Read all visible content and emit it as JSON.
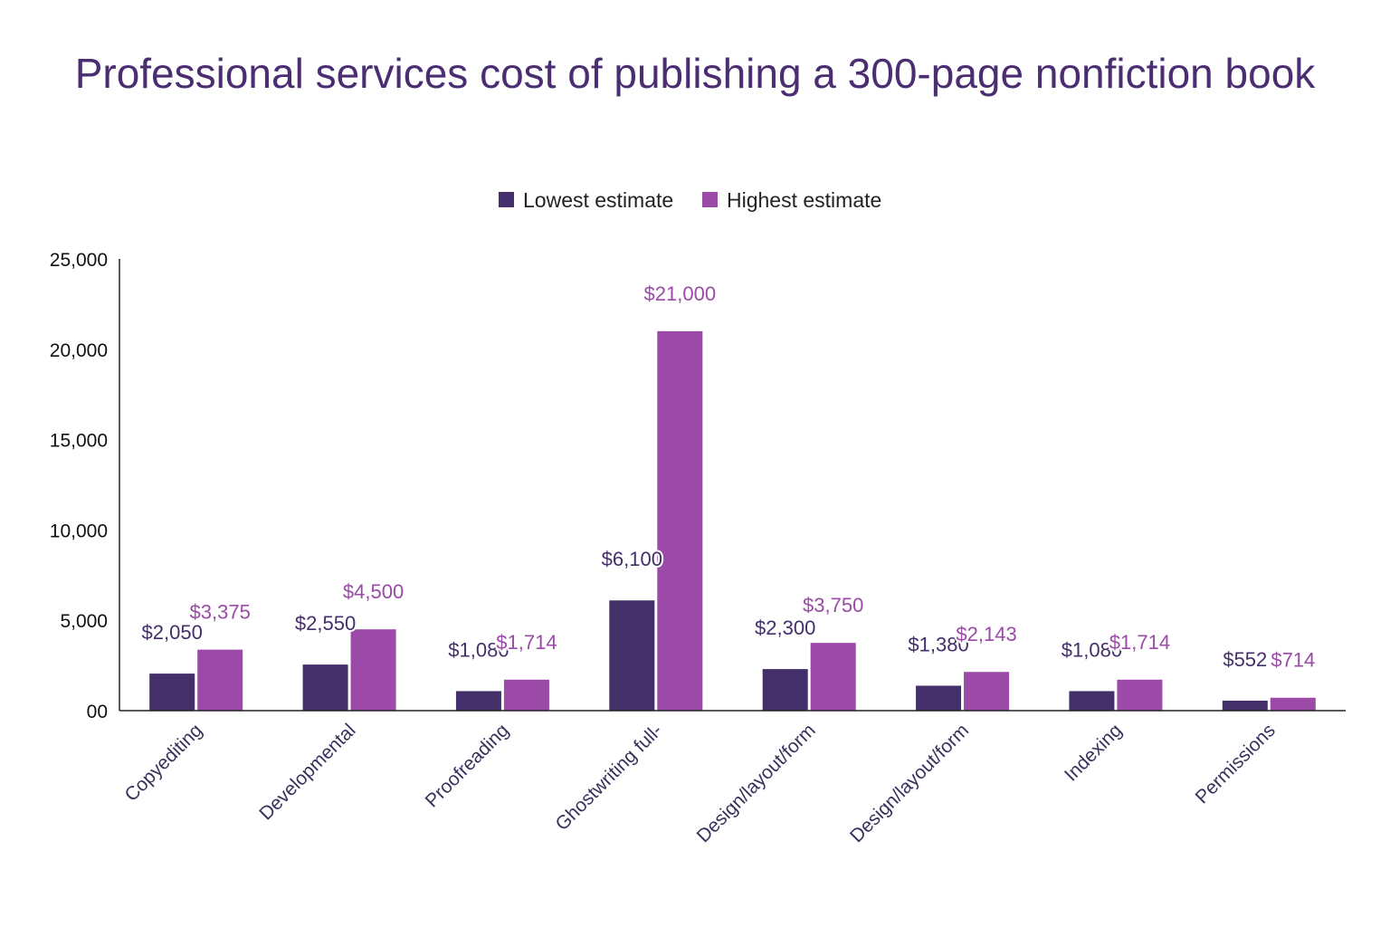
{
  "chart_data": {
    "type": "bar",
    "title": "Professional services cost of publishing a 300-page nonfiction book",
    "xlabel": "",
    "ylabel": "",
    "categories": [
      "Copyediting",
      "Developmental",
      "Proofreading",
      "Ghostwriting full-",
      "Design/layout/form",
      "Design/layout/form",
      "Indexing",
      "Permissions"
    ],
    "series": [
      {
        "name": "Lowest estimate",
        "color": "#432f6a",
        "values": [
          2050,
          2550,
          1080,
          6100,
          2300,
          1380,
          1080,
          552
        ],
        "labels": [
          "$2,050",
          "$2,550",
          "$1,080",
          "$6,100",
          "$2,300",
          "$1,380",
          "$1,080",
          "$552"
        ]
      },
      {
        "name": "Highest estimate",
        "color": "#9b4aa8",
        "values": [
          3375,
          4500,
          1714,
          21000,
          3750,
          2143,
          1714,
          714
        ],
        "labels": [
          "$3,375",
          "$4,500",
          "$1,714",
          "$21,000",
          "$3,750",
          "$2,143",
          "$1,714",
          "$714"
        ]
      }
    ],
    "ylim": [
      0,
      25000
    ],
    "yticks": [
      0,
      5000,
      10000,
      15000,
      20000,
      25000
    ],
    "ytick_labels": [
      "00",
      "5,000",
      "10,000",
      "15,000",
      "20,000",
      "25,000"
    ],
    "legend": "top-center",
    "grid": false,
    "data_labels": true
  }
}
